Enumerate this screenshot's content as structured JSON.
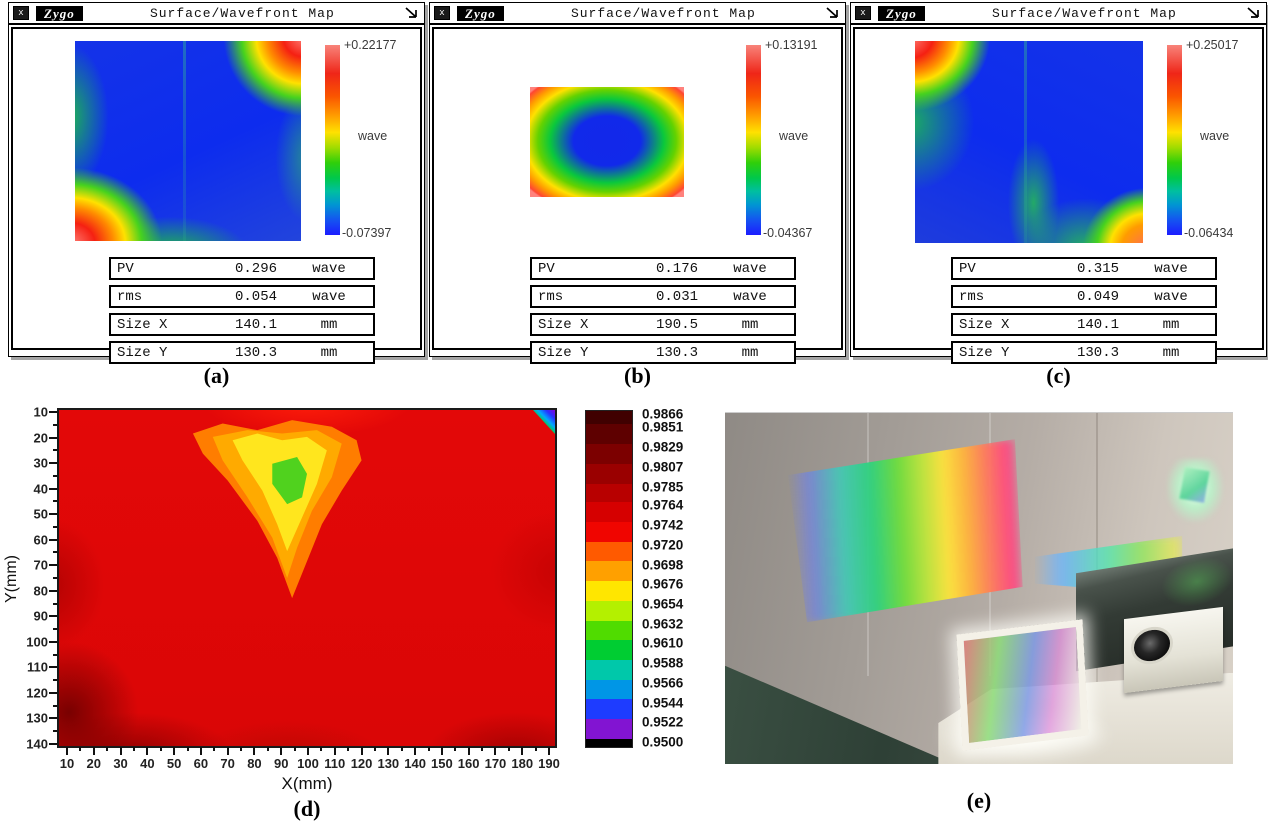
{
  "windows": [
    {
      "menu_icon": "x",
      "logo": "Zygo",
      "title": "Surface/Wavefront Map",
      "colorbar": {
        "max": "+0.22177",
        "unit": "wave",
        "min": "-0.07397"
      },
      "stats": [
        {
          "name": "PV",
          "value": "0.296",
          "unit": "wave"
        },
        {
          "name": "rms",
          "value": "0.054",
          "unit": "wave"
        },
        {
          "name": "Size X",
          "value": "140.1",
          "unit": "mm"
        },
        {
          "name": "Size Y",
          "value": "130.3",
          "unit": "mm"
        }
      ],
      "caption": "(a)"
    },
    {
      "menu_icon": "x",
      "logo": "Zygo",
      "title": "Surface/Wavefront Map",
      "colorbar": {
        "max": "+0.13191",
        "unit": "wave",
        "min": "-0.04367"
      },
      "stats": [
        {
          "name": "PV",
          "value": "0.176",
          "unit": "wave"
        },
        {
          "name": "rms",
          "value": "0.031",
          "unit": "wave"
        },
        {
          "name": "Size X",
          "value": "190.5",
          "unit": "mm"
        },
        {
          "name": "Size Y",
          "value": "130.3",
          "unit": "mm"
        }
      ],
      "caption": "(b)"
    },
    {
      "menu_icon": "x",
      "logo": "Zygo",
      "title": "Surface/Wavefront Map",
      "colorbar": {
        "max": "+0.25017",
        "unit": "wave",
        "min": "-0.06434"
      },
      "stats": [
        {
          "name": "PV",
          "value": "0.315",
          "unit": "wave"
        },
        {
          "name": "rms",
          "value": "0.049",
          "unit": "wave"
        },
        {
          "name": "Size X",
          "value": "140.1",
          "unit": "mm"
        },
        {
          "name": "Size Y",
          "value": "130.3",
          "unit": "mm"
        }
      ],
      "caption": "(c)"
    }
  ],
  "chart_data": {
    "type": "heatmap",
    "title": "",
    "xlabel": "X(mm)",
    "ylabel": "Y(mm)",
    "x_ticks": [
      "10",
      "20",
      "30",
      "40",
      "50",
      "60",
      "70",
      "80",
      "90",
      "100",
      "110",
      "120",
      "130",
      "140",
      "150",
      "160",
      "170",
      "180",
      "190"
    ],
    "y_ticks": [
      "10",
      "20",
      "30",
      "40",
      "50",
      "60",
      "70",
      "80",
      "90",
      "100",
      "110",
      "120",
      "130",
      "140"
    ],
    "xlim": [
      10,
      190
    ],
    "ylim": [
      10,
      140
    ],
    "y_axis_inverted": true,
    "grid": false,
    "legend_position": "right-colorbar",
    "colorbar_labels": [
      "0.9866",
      "0.9851",
      "0.9829",
      "0.9807",
      "0.9785",
      "0.9764",
      "0.9742",
      "0.9720",
      "0.9698",
      "0.9676",
      "0.9654",
      "0.9632",
      "0.9610",
      "0.9588",
      "0.9566",
      "0.9544",
      "0.9522",
      "0.9500"
    ],
    "colorbar_band_colors": [
      "#400000",
      "#5e0000",
      "#7c0000",
      "#9a0000",
      "#b80000",
      "#d60000",
      "#f00500",
      "#ff5a00",
      "#ffa000",
      "#ffe600",
      "#b4f000",
      "#50dc00",
      "#00cd32",
      "#00c8aa",
      "#0096e6",
      "#1e3cff",
      "#8214d2"
    ],
    "colorbar_bottom_color": "#000000",
    "regions": [
      {
        "area": "background, most of map",
        "value": "0.974-0.983",
        "appearance": "bright red"
      },
      {
        "area": "left edge / bottom-left / bottom-right",
        "value": "0.983-0.987",
        "appearance": "dark red patches"
      },
      {
        "area": "blob X=60-130 mm, Y=15-75 mm",
        "value": "0.963-0.972",
        "appearance": "orange-yellow local minimum"
      },
      {
        "area": "core X=90-105 mm, Y=30-55 mm",
        "value": "0.960-0.963",
        "appearance": "green core"
      },
      {
        "area": "corner X=185-190 mm, Y=10-15 mm",
        "value": "0.950-0.968",
        "appearance": "rainbow wedge anomaly"
      }
    ],
    "caption": "(d)"
  },
  "photo": {
    "caption": "(e)"
  }
}
